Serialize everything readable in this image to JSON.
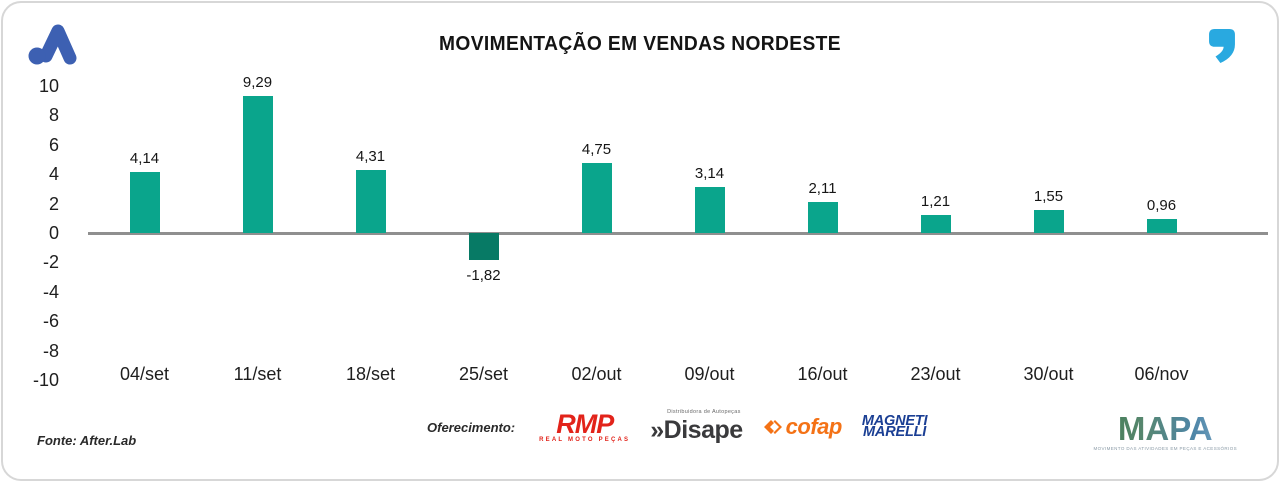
{
  "header": {
    "title": "MOVIMENTAÇÃO EM VENDAS NORDESTE"
  },
  "chart_data": {
    "type": "bar",
    "title": "MOVIMENTAÇÃO EM VENDAS NORDESTE",
    "categories": [
      "04/set",
      "11/set",
      "18/set",
      "25/set",
      "02/out",
      "09/out",
      "16/out",
      "23/out",
      "30/out",
      "06/nov"
    ],
    "values": [
      4.14,
      9.29,
      4.31,
      -1.82,
      4.75,
      3.14,
      2.11,
      1.21,
      1.55,
      0.96
    ],
    "value_labels": [
      "4,14",
      "9,29",
      "4,31",
      "-1,82",
      "4,75",
      "3,14",
      "2,11",
      "1,21",
      "1,55",
      "0,96"
    ],
    "ylim": [
      -10,
      10
    ],
    "yticks": [
      "10",
      "8",
      "6",
      "4",
      "2",
      "0",
      "-2",
      "-4",
      "-6",
      "-8",
      "-10"
    ],
    "xlabel": "",
    "ylabel": "",
    "grid": false,
    "legend_position": "none",
    "colors": {
      "bar_positive": "#0aa58c",
      "bar_negative": "#077a65",
      "zero_line": "#8f8f8f"
    }
  },
  "footer": {
    "fonte": "Fonte: After.Lab",
    "oferecimento_label": "Oferecimento:",
    "sponsors": {
      "rmp": {
        "text": "RMP",
        "subtext": "REAL MOTO PEÇAS",
        "color": "#e2231a"
      },
      "disape": {
        "prefix": "»",
        "text": "Disape",
        "supertext": "Distribuidora de Autopeças",
        "color": "#3a3a3c"
      },
      "cofap": {
        "text": "cofap",
        "color": "#f47216"
      },
      "magneti_marelli": {
        "line1": "MAGNETI",
        "line2": "MARELLI",
        "color": "#1b3f94"
      },
      "mapa": {
        "text": "MAPA",
        "subtext": "MOVIMENTO DAS ATIVIDADES EM PEÇAS E ACESSÓRIOS"
      }
    }
  },
  "colors": {
    "brand_logo_blue": "#3d60b2",
    "quote_blue": "#29a9e0",
    "card_border": "#d7d7d7"
  }
}
